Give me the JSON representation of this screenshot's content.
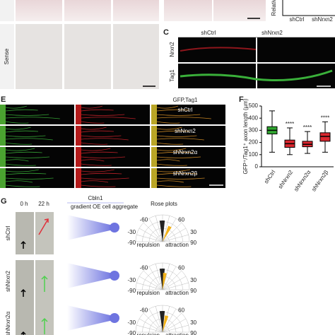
{
  "panel_a": {
    "row_labels": [
      "Sense"
    ]
  },
  "panel_b": {
    "y_label": "Relative",
    "categories": [
      "shCtrl",
      "shNrxn2"
    ],
    "colors": [
      "#2a9d2a",
      "#d0202a"
    ]
  },
  "panel_c": {
    "label": "C",
    "columns": [
      "shCtrl",
      "shNrxn2"
    ],
    "rows": [
      "Nrxn2",
      "Tag1"
    ],
    "row_colors": [
      "#d0202a",
      "#2a9d2a"
    ]
  },
  "panel_e": {
    "label": "E",
    "title": "GFP,Tag1",
    "rows": [
      "shCtrl",
      "shNrxn2",
      "shNrxn2α",
      "shNrxn2β"
    ]
  },
  "panel_f": {
    "label": "F",
    "chart_data": {
      "type": "box",
      "y_label": "GFP⁺/Tag1⁺ axon length (µm)",
      "categories": [
        "shCtrl",
        "shNrxn2",
        "shNrxn2α",
        "shNrxn2β"
      ],
      "colors": [
        "#2fa52f",
        "#d9262e",
        "#d9262e",
        "#d9262e"
      ],
      "min": [
        120,
        100,
        110,
        120
      ],
      "q1": [
        270,
        160,
        165,
        210
      ],
      "median": [
        300,
        190,
        185,
        250
      ],
      "q3": [
        330,
        220,
        210,
        280
      ],
      "max": [
        460,
        320,
        290,
        370
      ],
      "significance": [
        null,
        "****",
        "****",
        "****"
      ],
      "ylim": [
        0,
        500
      ],
      "yticks": [
        0,
        100,
        200,
        300,
        400,
        500
      ]
    }
  },
  "panel_g": {
    "label": "G",
    "times": [
      "0 h",
      "22 h"
    ],
    "cue_title": "Cbln1",
    "cue_labels": [
      "gradient",
      "OE cell aggregate"
    ],
    "rose_title": "Rose plots",
    "rows": [
      "shCtrl",
      "shNrxn2",
      "shNrxn2α"
    ],
    "rose_ticks": [
      "-60",
      "60",
      "-30",
      "30",
      "-90",
      "90"
    ],
    "rose_legend": [
      "repulsion",
      "attraction"
    ]
  }
}
